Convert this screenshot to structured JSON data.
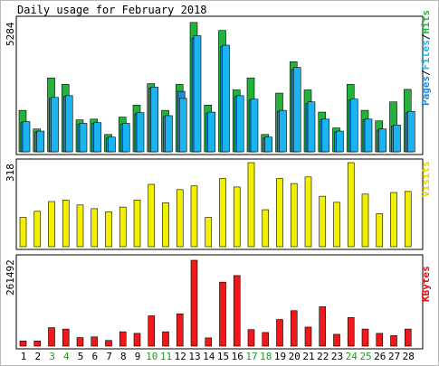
{
  "chart_data": [
    {
      "type": "bar",
      "title": "Daily usage for February 2018",
      "panel": "hits-files-pages",
      "scale_label": "5284",
      "ylim": [
        0,
        5284
      ],
      "legend": {
        "pages": "Pages",
        "files": "Files",
        "hits": "Hits",
        "sep1": "/",
        "sep2": "/"
      },
      "categories": [
        "1",
        "2",
        "3",
        "4",
        "5",
        "6",
        "7",
        "8",
        "9",
        "10",
        "11",
        "12",
        "13",
        "14",
        "15",
        "16",
        "17",
        "18",
        "19",
        "20",
        "21",
        "22",
        "23",
        "24",
        "25",
        "26",
        "27",
        "28"
      ],
      "weekend_days": [
        "3",
        "4",
        "10",
        "11",
        "17",
        "18",
        "24",
        "25"
      ],
      "series": [
        {
          "name": "Hits",
          "values": [
            1660,
            915,
            2960,
            2700,
            1280,
            1310,
            695,
            1390,
            1870,
            2730,
            1660,
            2700,
            5180,
            1870,
            4860,
            2480,
            2960,
            695,
            2350,
            3610,
            2480,
            1590,
            955,
            2700,
            1660,
            1240,
            2000,
            2500
          ]
        },
        {
          "name": "Files",
          "values": [
            1210,
            830,
            2180,
            2250,
            1140,
            1170,
            590,
            1140,
            1570,
            2590,
            1450,
            2140,
            4650,
            1590,
            4270,
            2250,
            2110,
            590,
            1660,
            3380,
            2000,
            1310,
            830,
            2110,
            1310,
            915,
            1070,
            1620
          ]
        },
        {
          "name": "Pages",
          "values": [
            1170,
            790,
            2140,
            2210,
            1100,
            1140,
            550,
            1100,
            1520,
            2550,
            1410,
            2420,
            4550,
            1550,
            4210,
            2210,
            2070,
            550,
            1620,
            3300,
            1930,
            1280,
            790,
            2070,
            1280,
            870,
            1030,
            1560
          ]
        }
      ],
      "colors": {
        "Hits": "#22b43a",
        "Files": "#1ab4f0",
        "Pages": "#1a8ce8"
      }
    },
    {
      "type": "bar",
      "panel": "visits",
      "scale_label": "318",
      "ylim": [
        0,
        318
      ],
      "legend": {
        "visits": "Visits"
      },
      "categories": [
        "1",
        "2",
        "3",
        "4",
        "5",
        "6",
        "7",
        "8",
        "9",
        "10",
        "11",
        "12",
        "13",
        "14",
        "15",
        "16",
        "17",
        "18",
        "19",
        "20",
        "21",
        "22",
        "23",
        "24",
        "25",
        "26",
        "27",
        "28"
      ],
      "series": [
        {
          "name": "Visits",
          "values": [
            111,
            134,
            171,
            176,
            158,
            144,
            132,
            150,
            177,
            236,
            166,
            216,
            230,
            111,
            258,
            226,
            318,
            140,
            258,
            239,
            264,
            191,
            168,
            318,
            199,
            125,
            205,
            209
          ]
        }
      ],
      "colors": {
        "Visits": "#f0f000"
      }
    },
    {
      "type": "bar",
      "panel": "kbytes",
      "scale_label": "261492",
      "ylim": [
        0,
        261492
      ],
      "legend": {
        "kbytes": "KBytes"
      },
      "categories": [
        "1",
        "2",
        "3",
        "4",
        "5",
        "6",
        "7",
        "8",
        "9",
        "10",
        "11",
        "12",
        "13",
        "14",
        "15",
        "16",
        "17",
        "18",
        "19",
        "20",
        "21",
        "22",
        "23",
        "24",
        "25",
        "26",
        "27",
        "28"
      ],
      "series": [
        {
          "name": "KBytes",
          "values": [
            15800,
            15800,
            56300,
            52000,
            26000,
            28200,
            17300,
            43700,
            38900,
            92300,
            43700,
            98400,
            261492,
            25100,
            195000,
            215000,
            50400,
            41500,
            81000,
            108000,
            58000,
            120000,
            36000,
            87000,
            52000,
            38900,
            32000,
            52000
          ]
        }
      ],
      "colors": {
        "KBytes": "#f01818"
      }
    }
  ]
}
